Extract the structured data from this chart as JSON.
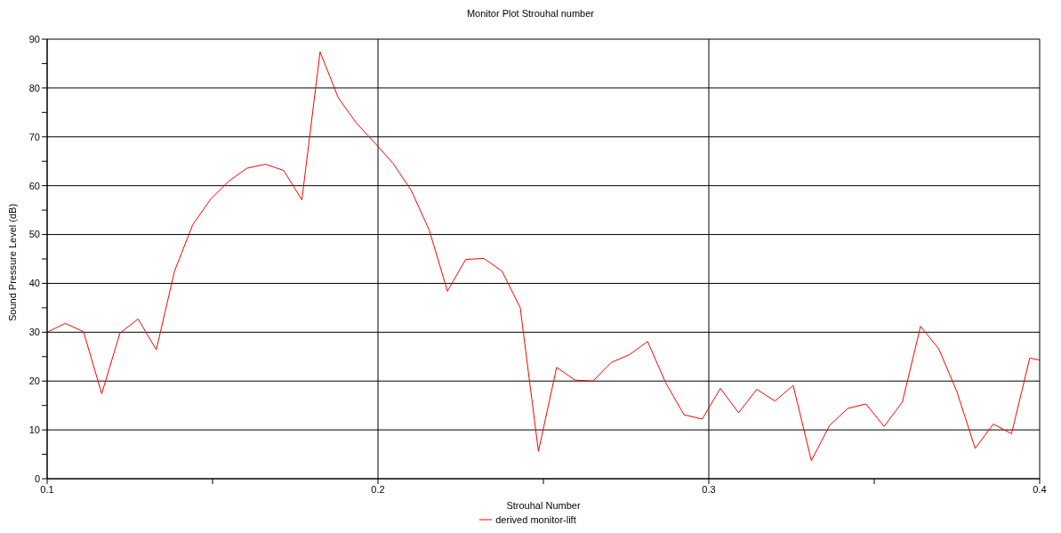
{
  "chart_data": {
    "type": "line",
    "title": "Monitor Plot Strouhal number",
    "xlabel": "Strouhal Number",
    "ylabel": "Sound Pressure Level (dB)",
    "x": [
      0.1,
      0.1055,
      0.111,
      0.1165,
      0.122,
      0.1275,
      0.133,
      0.1385,
      0.144,
      0.1495,
      0.155,
      0.1605,
      0.166,
      0.1715,
      0.177,
      0.1825,
      0.188,
      0.1935,
      0.199,
      0.2045,
      0.21,
      0.2155,
      0.221,
      0.2265,
      0.232,
      0.2375,
      0.243,
      0.2485,
      0.254,
      0.2595,
      0.265,
      0.2705,
      0.276,
      0.2815,
      0.287,
      0.2925,
      0.298,
      0.3035,
      0.309,
      0.3145,
      0.32,
      0.3255,
      0.331,
      0.3365,
      0.342,
      0.3475,
      0.353,
      0.3585,
      0.364,
      0.3695,
      0.375,
      0.3805,
      0.386,
      0.3915,
      0.397,
      0.4
    ],
    "series": [
      {
        "name": "derived monitor-lift",
        "color": "#ff0000",
        "values": [
          30.0,
          31.8,
          30.1,
          17.4,
          29.8,
          32.7,
          26.4,
          42.5,
          52.0,
          57.3,
          61.0,
          63.6,
          64.4,
          63.1,
          57.1,
          87.4,
          78.0,
          72.8,
          68.8,
          64.6,
          59.1,
          50.9,
          38.4,
          44.9,
          45.1,
          42.5,
          35.0,
          5.6,
          22.8,
          20.2,
          20.0,
          23.8,
          25.4,
          28.1,
          19.6,
          13.1,
          12.2,
          18.5,
          13.5,
          18.3,
          15.9,
          19.1,
          3.7,
          10.9,
          14.4,
          15.3,
          10.7,
          15.7,
          31.2,
          26.6,
          17.8,
          6.2,
          11.2,
          9.2,
          24.7,
          24.3
        ]
      }
    ],
    "xlim": [
      0.1,
      0.4
    ],
    "xticks": [
      0.1,
      {
        "value": 0.15,
        "label": null
      },
      0.2,
      {
        "value": 0.25,
        "label": null
      },
      0.3,
      {
        "value": 0.35,
        "label": null
      },
      0.4
    ],
    "ylim": [
      0,
      90
    ],
    "yticks": [
      0,
      {
        "value": 5,
        "label": null
      },
      10,
      {
        "value": 15,
        "label": null
      },
      20,
      {
        "value": 25,
        "label": null
      },
      30,
      {
        "value": 35,
        "label": null
      },
      40,
      {
        "value": 45,
        "label": null
      },
      50,
      {
        "value": 55,
        "label": null
      },
      60,
      {
        "value": 65,
        "label": null
      },
      70,
      {
        "value": 75,
        "label": null
      },
      80,
      {
        "value": 85,
        "label": null
      },
      90
    ],
    "grid": true,
    "legend": "bottom",
    "marker": "none",
    "line_style": "solid"
  }
}
